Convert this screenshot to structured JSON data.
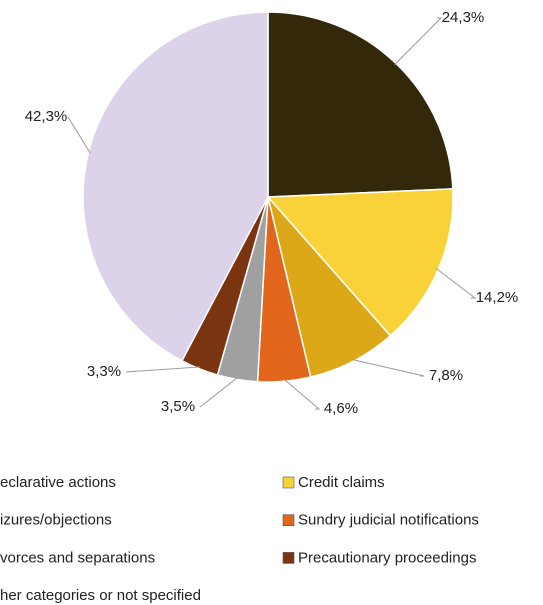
{
  "chart_data": {
    "type": "pie",
    "categories": [
      "eclarative actions",
      "Credit claims",
      "izures/objections",
      "Sundry judicial notifications",
      "vorces and separations",
      "Precautionary proceedings",
      "her categories or not specified"
    ],
    "values": [
      24.3,
      14.2,
      7.8,
      4.6,
      3.5,
      3.3,
      42.3
    ],
    "value_labels": [
      "24,3%",
      "14,2%",
      "7,8%",
      "4,6%",
      "3,5%",
      "3,3%",
      "42,3%"
    ],
    "colors": [
      "#33280a",
      "#f8d238",
      "#dca817",
      "#e2661b",
      "#a0a0a0",
      "#7b3410",
      "#dcd2ea"
    ]
  }
}
